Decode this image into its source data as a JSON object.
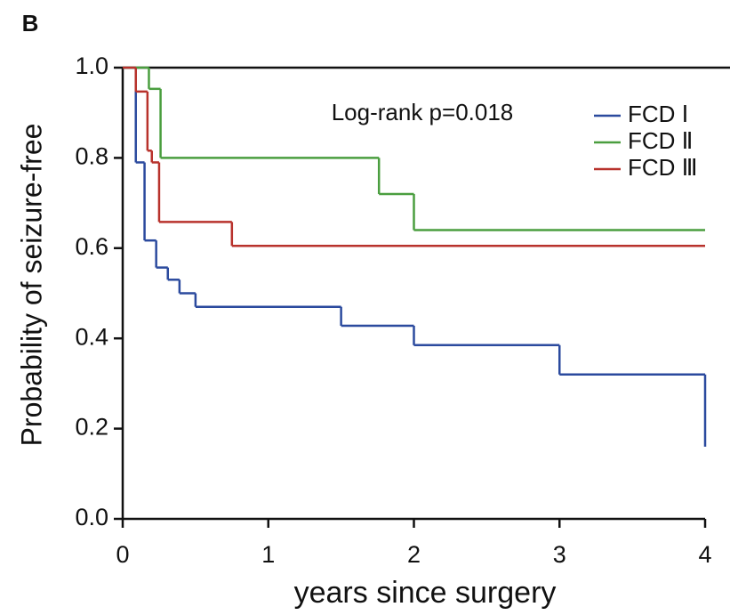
{
  "chart_data": {
    "type": "step",
    "panel_label": "B",
    "annotation": "Log-rank p=0.018",
    "x_label": "years since surgery",
    "y_label": "Probability of seizure-free",
    "xlim": [
      0,
      4
    ],
    "xticks": [
      0,
      1,
      2,
      3,
      4
    ],
    "ylim": [
      0,
      1
    ],
    "yticks": [
      {
        "value": 0,
        "label": "0.0"
      },
      0.2,
      0.4,
      0.6,
      0.8,
      {
        "value": 1,
        "label": "1.0"
      }
    ],
    "legend": "top-right",
    "series": [
      {
        "name": "FCD Ⅰ",
        "color": "#2b4a9e",
        "x": [
          0,
          0.09,
          0.15,
          0.23,
          0.31,
          0.39,
          0.5,
          1.5,
          2,
          3,
          4
        ],
        "values": [
          1,
          0.79,
          0.617,
          0.557,
          0.53,
          0.5,
          0.47,
          0.428,
          0.385,
          0.32,
          0.16
        ]
      },
      {
        "name": "FCD Ⅱ",
        "color": "#4a9e3f",
        "x": [
          0,
          0.18,
          0.26,
          1.76,
          2,
          4
        ],
        "values": [
          1,
          0.953,
          0.8,
          0.72,
          0.64,
          0.64
        ]
      },
      {
        "name": "FCD Ⅲ",
        "color": "#b8322c",
        "x": [
          0,
          0.09,
          0.17,
          0.2,
          0.25,
          0.75,
          4
        ],
        "values": [
          1,
          0.947,
          0.816,
          0.79,
          0.658,
          0.605,
          0.605
        ]
      }
    ]
  }
}
